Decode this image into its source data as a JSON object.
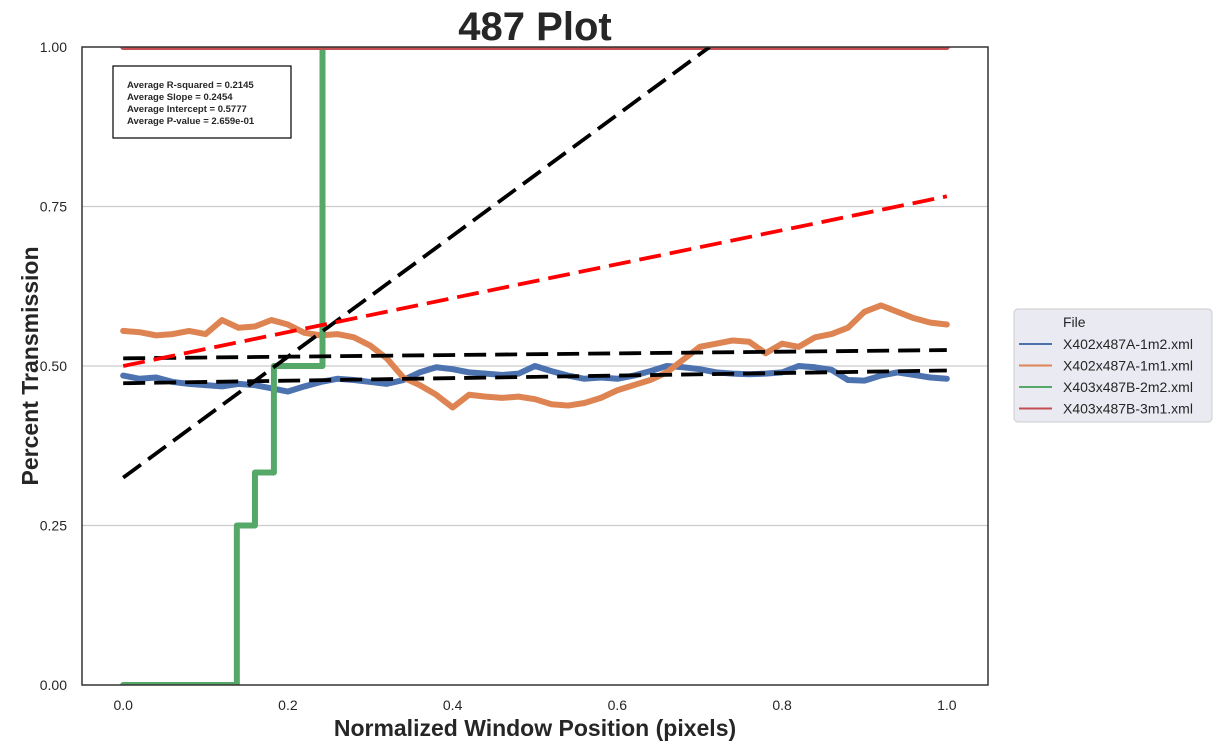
{
  "chart_data": {
    "type": "line",
    "title": "487 Plot",
    "xlabel": "Normalized Window Position (pixels)",
    "ylabel": "Percent Transmission",
    "xlim": [
      -0.05,
      1.05
    ],
    "ylim": [
      0.0,
      1.0
    ],
    "xticks": [
      0.0,
      0.2,
      0.4,
      0.6,
      0.8,
      1.0
    ],
    "xtick_labels": [
      "0.0",
      "0.2",
      "0.4",
      "0.6",
      "0.8",
      "1.0"
    ],
    "yticks": [
      0.0,
      0.25,
      0.5,
      0.75,
      1.0
    ],
    "ytick_labels": [
      "0.00",
      "0.25",
      "0.50",
      "0.75",
      "1.00"
    ],
    "grid": "horizontal",
    "legend": {
      "title": "File",
      "placement": "right-outside",
      "entries": [
        "X402x487A-1m2.xml",
        "X402x487A-1m1.xml",
        "X403x487B-2m2.xml",
        "X403x487B-3m1.xml"
      ]
    },
    "annotation": {
      "lines": [
        "Average R-squared = 0.2145",
        "Average Slope = 0.2454",
        "Average Intercept = 0.5777",
        "Average P-value = 2.659e-01"
      ]
    },
    "series": [
      {
        "name": "X402x487A-1m2.xml",
        "color": "#4C72B0",
        "x": [
          0.0,
          0.02,
          0.04,
          0.06,
          0.08,
          0.1,
          0.12,
          0.14,
          0.16,
          0.18,
          0.2,
          0.22,
          0.24,
          0.26,
          0.28,
          0.3,
          0.32,
          0.34,
          0.36,
          0.38,
          0.4,
          0.42,
          0.44,
          0.46,
          0.48,
          0.5,
          0.52,
          0.54,
          0.56,
          0.58,
          0.6,
          0.62,
          0.64,
          0.66,
          0.68,
          0.7,
          0.72,
          0.74,
          0.76,
          0.78,
          0.8,
          0.82,
          0.84,
          0.86,
          0.88,
          0.9,
          0.92,
          0.94,
          0.96,
          0.98,
          1.0
        ],
        "y": [
          0.485,
          0.48,
          0.482,
          0.475,
          0.472,
          0.47,
          0.468,
          0.472,
          0.47,
          0.465,
          0.46,
          0.468,
          0.475,
          0.48,
          0.478,
          0.475,
          0.472,
          0.478,
          0.49,
          0.498,
          0.495,
          0.49,
          0.488,
          0.486,
          0.488,
          0.5,
          0.492,
          0.485,
          0.48,
          0.482,
          0.48,
          0.485,
          0.492,
          0.5,
          0.498,
          0.495,
          0.49,
          0.488,
          0.487,
          0.488,
          0.49,
          0.5,
          0.498,
          0.494,
          0.478,
          0.477,
          0.485,
          0.49,
          0.486,
          0.482,
          0.48
        ]
      },
      {
        "name": "X402x487A-1m1.xml",
        "color": "#DD8452",
        "x": [
          0.0,
          0.02,
          0.04,
          0.06,
          0.08,
          0.1,
          0.12,
          0.14,
          0.16,
          0.18,
          0.2,
          0.22,
          0.24,
          0.26,
          0.28,
          0.3,
          0.32,
          0.34,
          0.36,
          0.38,
          0.4,
          0.42,
          0.44,
          0.46,
          0.48,
          0.5,
          0.52,
          0.54,
          0.56,
          0.58,
          0.6,
          0.62,
          0.64,
          0.66,
          0.68,
          0.7,
          0.72,
          0.74,
          0.76,
          0.78,
          0.8,
          0.82,
          0.84,
          0.86,
          0.88,
          0.9,
          0.92,
          0.94,
          0.96,
          0.98,
          1.0
        ],
        "y": [
          0.555,
          0.553,
          0.548,
          0.55,
          0.555,
          0.55,
          0.572,
          0.56,
          0.562,
          0.572,
          0.565,
          0.552,
          0.548,
          0.55,
          0.545,
          0.532,
          0.512,
          0.482,
          0.47,
          0.455,
          0.435,
          0.455,
          0.452,
          0.45,
          0.452,
          0.448,
          0.44,
          0.438,
          0.442,
          0.45,
          0.462,
          0.47,
          0.478,
          0.49,
          0.51,
          0.53,
          0.535,
          0.54,
          0.538,
          0.52,
          0.535,
          0.53,
          0.545,
          0.55,
          0.56,
          0.585,
          0.595,
          0.585,
          0.575,
          0.568,
          0.565
        ]
      },
      {
        "name": "X403x487B-2m2.xml",
        "color": "#55A868",
        "step": true,
        "x": [
          0.0,
          0.138,
          0.138,
          0.16,
          0.16,
          0.183,
          0.183,
          0.242,
          0.242,
          0.247
        ],
        "y": [
          0.0,
          0.0,
          0.25,
          0.25,
          0.333,
          0.333,
          0.5,
          0.5,
          1.0,
          1.0
        ]
      },
      {
        "name": "X403x487B-3m1.xml",
        "color": "#C44E52",
        "x": [
          0.0,
          1.0
        ],
        "y": [
          1.0,
          1.0
        ]
      }
    ],
    "fit_lines": [
      {
        "color": "#000000",
        "x": [
          0.0,
          1.0
        ],
        "y": [
          0.512,
          0.525
        ]
      },
      {
        "color": "#000000",
        "x": [
          0.0,
          1.0
        ],
        "y": [
          0.473,
          0.493
        ]
      },
      {
        "color": "#000000",
        "x": [
          0.0,
          0.712
        ],
        "y": [
          0.325,
          1.0
        ]
      },
      {
        "color": "#ff0000",
        "x": [
          0.0,
          1.0
        ],
        "y": [
          0.5,
          0.766
        ]
      }
    ]
  }
}
